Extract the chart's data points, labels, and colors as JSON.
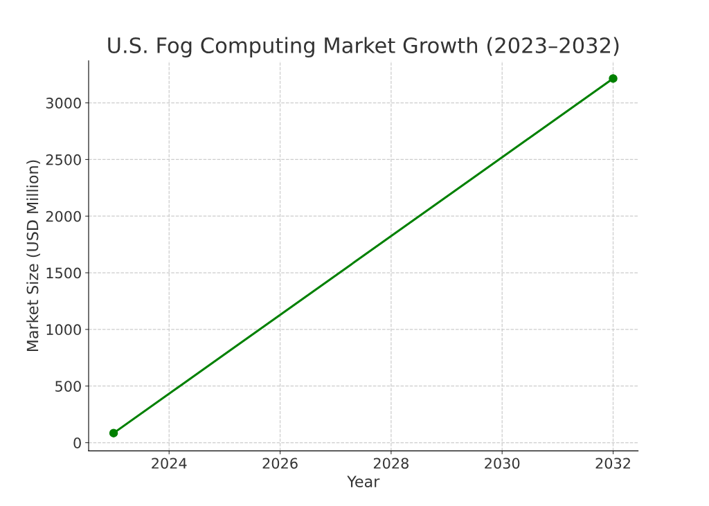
{
  "chart_data": {
    "type": "line",
    "title": "U.S. Fog Computing Market Growth (2023–2032)",
    "xlabel": "Year",
    "ylabel": "Market Size (USD Million)",
    "x": [
      2023,
      2032
    ],
    "series": [
      {
        "color": "#008000",
        "values": [
          85,
          3215
        ]
      }
    ],
    "xlim": [
      2022.55,
      2032.45
    ],
    "ylim": [
      -72,
      3372
    ],
    "xticks": [
      2024,
      2026,
      2028,
      2030,
      2032
    ],
    "yticks": [
      0,
      500,
      1000,
      1500,
      2000,
      2500,
      3000
    ],
    "grid": true,
    "marker": "circle",
    "line_style": "solid"
  }
}
